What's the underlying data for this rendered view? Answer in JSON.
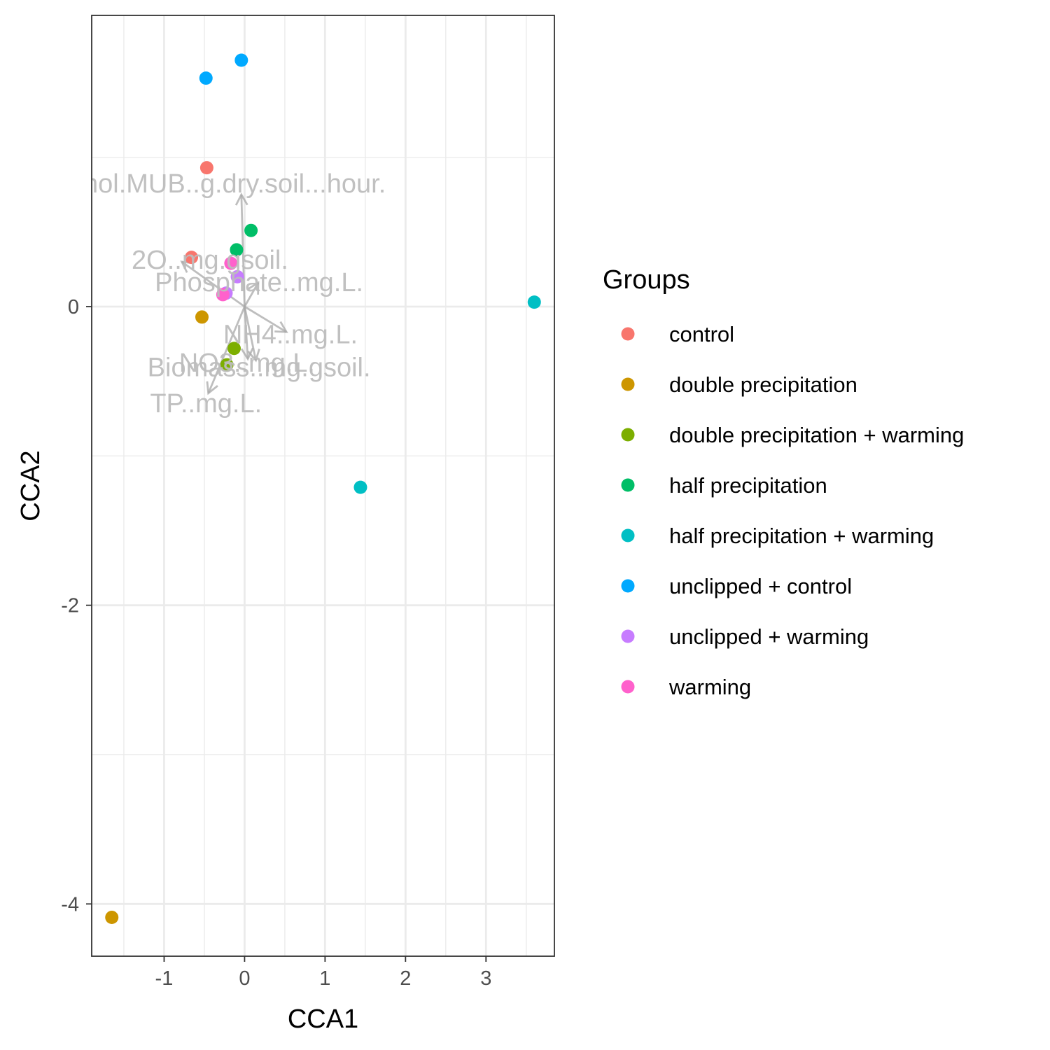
{
  "chart_data": {
    "type": "scatter",
    "title": "",
    "xlabel": "CCA1",
    "ylabel": "CCA2",
    "xlim": [
      -1.9,
      3.85
    ],
    "ylim": [
      -4.35,
      1.95
    ],
    "x_ticks": [
      -1,
      0,
      1,
      2,
      3
    ],
    "x_tick_labels": [
      "-1",
      "0",
      "1",
      "2",
      "3"
    ],
    "y_ticks": [
      -4,
      -2,
      0
    ],
    "y_tick_labels": [
      "-4",
      "-2",
      "0"
    ],
    "grid": true,
    "legend": {
      "title": "Groups",
      "position": "right",
      "entries": [
        {
          "name": "control",
          "color": "#F8766D"
        },
        {
          "name": "double precipitation",
          "color": "#CD9600"
        },
        {
          "name": "double precipitation + warming",
          "color": "#7CAE00"
        },
        {
          "name": "half precipitation",
          "color": "#00BE67"
        },
        {
          "name": "half precipitation + warming",
          "color": "#00BFC4"
        },
        {
          "name": "unclipped + control",
          "color": "#00A9FF"
        },
        {
          "name": "unclipped + warming",
          "color": "#C77CFF"
        },
        {
          "name": "warming",
          "color": "#FF61CC"
        }
      ]
    },
    "points": [
      {
        "group": "unclipped + control",
        "x": -0.48,
        "y": 1.53
      },
      {
        "group": "unclipped + control",
        "x": -0.04,
        "y": 1.65
      },
      {
        "group": "control",
        "x": -0.47,
        "y": 0.93
      },
      {
        "group": "control",
        "x": -0.66,
        "y": 0.33
      },
      {
        "group": "half precipitation",
        "x": 0.08,
        "y": 0.51
      },
      {
        "group": "half precipitation",
        "x": -0.1,
        "y": 0.38
      },
      {
        "group": "warming",
        "x": -0.17,
        "y": 0.29
      },
      {
        "group": "unclipped + warming",
        "x": -0.09,
        "y": 0.2
      },
      {
        "group": "unclipped + warming",
        "x": -0.23,
        "y": 0.09
      },
      {
        "group": "warming",
        "x": -0.27,
        "y": 0.08
      },
      {
        "group": "double precipitation",
        "x": -0.53,
        "y": -0.07
      },
      {
        "group": "double precipitation + warming",
        "x": -0.13,
        "y": -0.28
      },
      {
        "group": "double precipitation + warming",
        "x": -0.22,
        "y": -0.39
      },
      {
        "group": "half precipitation + warming",
        "x": 3.6,
        "y": 0.03
      },
      {
        "group": "half precipitation + warming",
        "x": 1.44,
        "y": -1.21
      },
      {
        "group": "double precipitation",
        "x": -1.65,
        "y": -4.09
      }
    ],
    "vectors": [
      {
        "label": "ty..nmol.MUB..g.dry.soil...hour.",
        "x": -0.04,
        "y": 0.75,
        "label_x": -0.47,
        "label_y": 0.81
      },
      {
        "label": "2O..mg.gsoil.",
        "x": -0.78,
        "y": 0.3,
        "label_x": -0.43,
        "label_y": 0.3
      },
      {
        "label": "Phosphate..mg.L.",
        "x": 0.17,
        "y": 0.16,
        "label_x": 0.18,
        "label_y": 0.15
      },
      {
        "label": "NH4..mg.L.",
        "x": 0.52,
        "y": -0.17,
        "label_x": 0.57,
        "label_y": -0.2
      },
      {
        "label": "NO3..mg.L.",
        "x": 0.04,
        "y": -0.35,
        "label_x": 0.03,
        "label_y": -0.39
      },
      {
        "label": "Biomass..mg.gsoil.",
        "x": 0.14,
        "y": -0.36,
        "label_x": 0.18,
        "label_y": -0.42
      },
      {
        "label": "TP..mg.L.",
        "x": -0.45,
        "y": -0.58,
        "label_x": -0.48,
        "label_y": -0.66
      }
    ]
  }
}
